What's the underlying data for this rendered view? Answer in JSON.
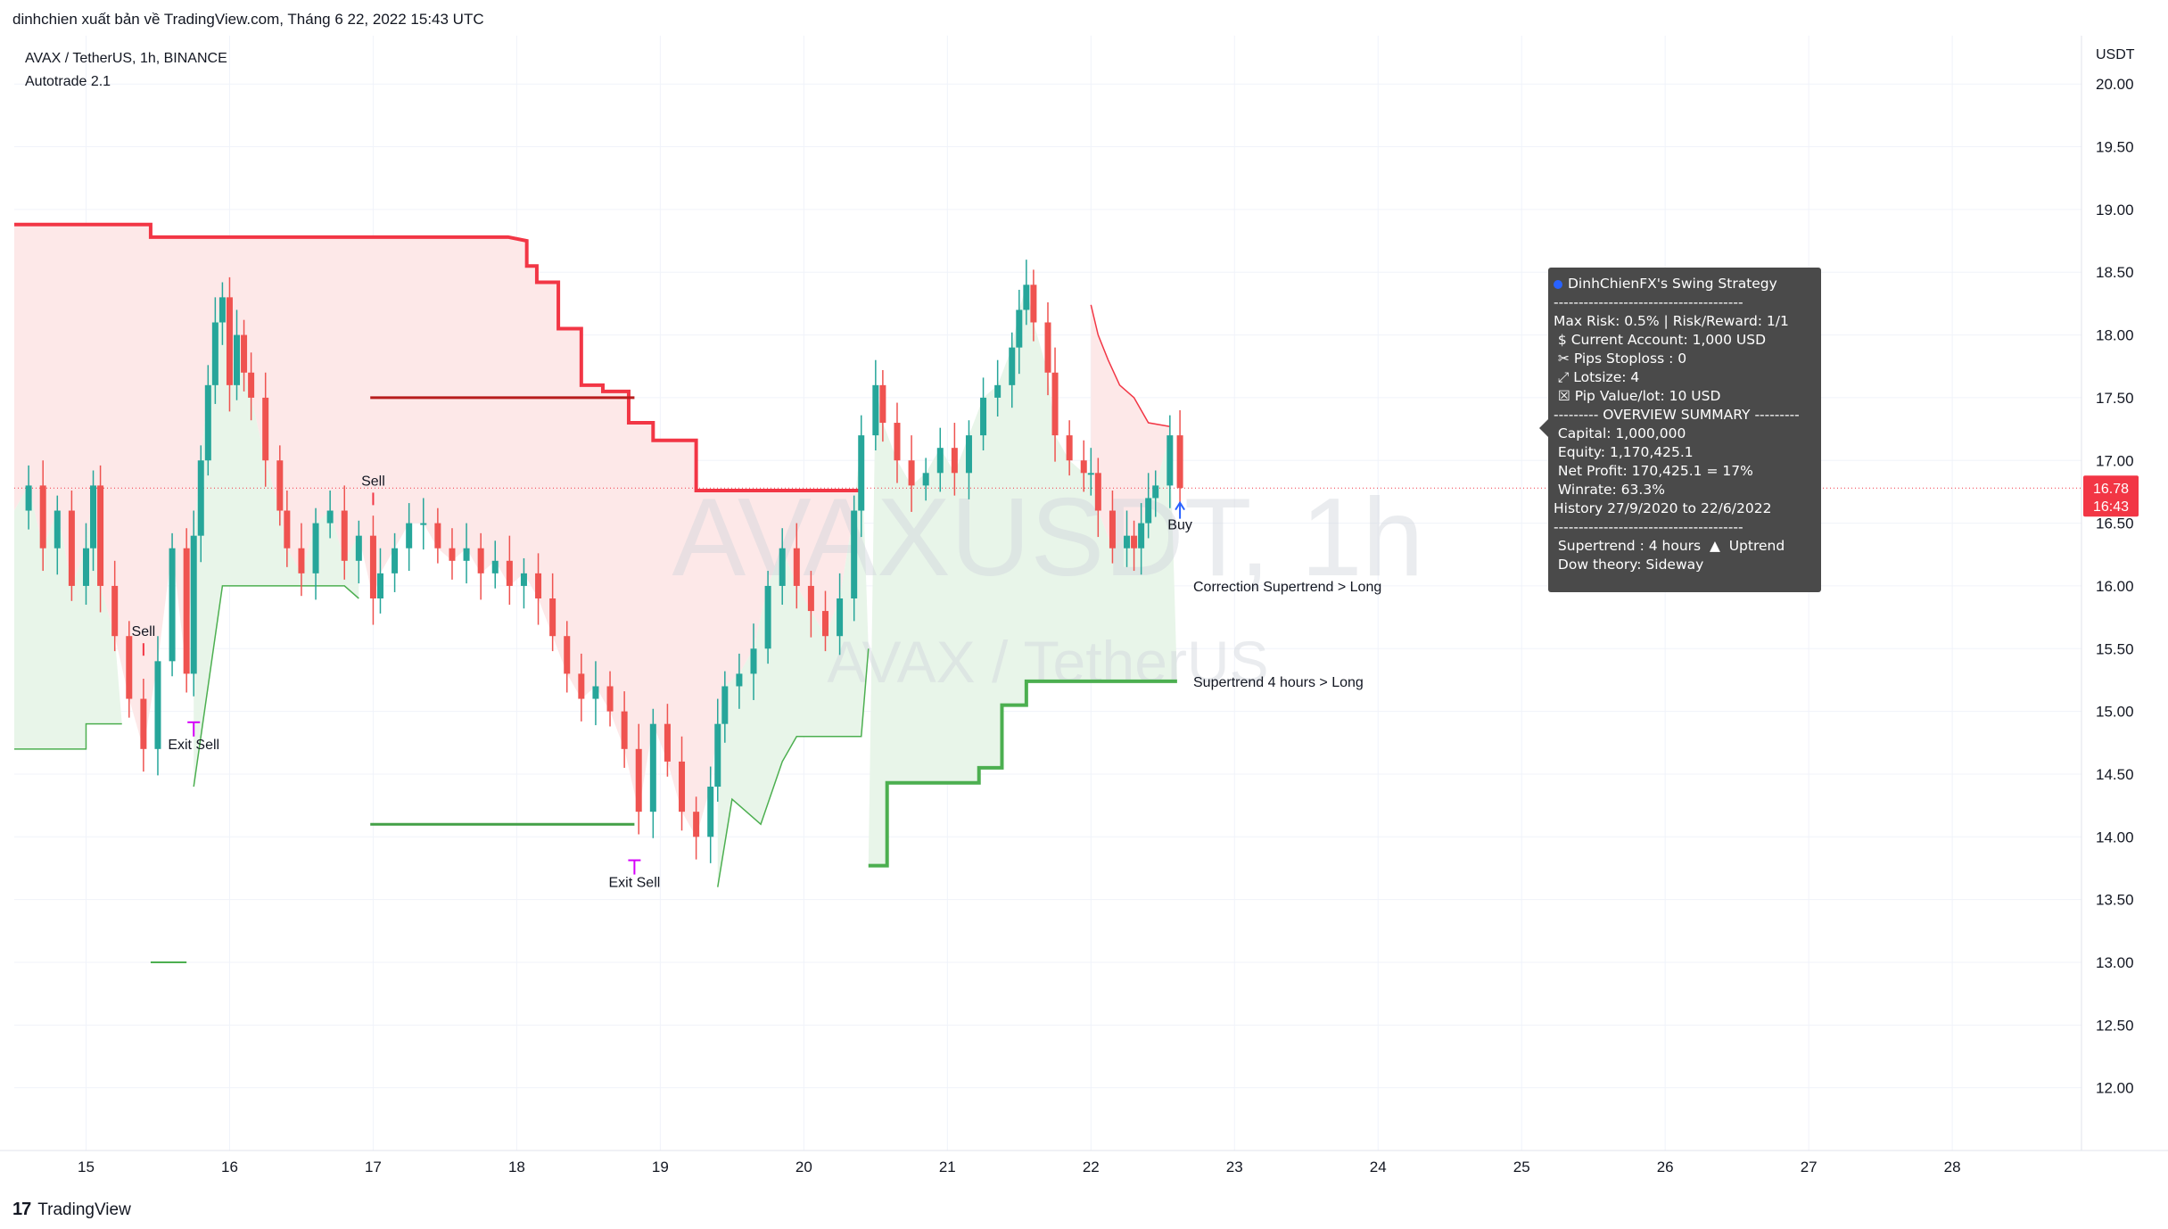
{
  "header": {
    "publisher_line": "dinhchien xuất bản về TradingView.com, Tháng 6 22, 2022 15:43 UTC"
  },
  "legend": {
    "symbol_line": "AVAX / TetherUS, 1h, BINANCE",
    "indicator_line": "Autotrade 2.1"
  },
  "watermark": {
    "main": "AVAXUSDT, 1h",
    "sub": "AVAX / TetherUS"
  },
  "brand": {
    "name": "TradingView"
  },
  "colors": {
    "up": "#26a69a",
    "down": "#ef5350",
    "supertrend_red": "#f23645",
    "supertrend_green": "#4caf50",
    "red_fill": "#fde8e8",
    "green_fill": "#e8f5e9",
    "magenta": "#d500f9",
    "panel_bg": "#4a4a4a",
    "price_tag": "#f23645"
  },
  "chart_data": {
    "type": "candlestick",
    "title": "AVAX / TetherUS, 1h, BINANCE",
    "y_axis": {
      "unit_label": "USDT",
      "ticks": [
        "20.00",
        "19.50",
        "19.00",
        "18.50",
        "18.00",
        "17.50",
        "17.00",
        "16.50",
        "16.00",
        "15.50",
        "15.00",
        "14.50",
        "14.00",
        "13.50",
        "13.00",
        "12.50",
        "12.00"
      ],
      "ylim": [
        11.5,
        20.3
      ]
    },
    "x_axis": {
      "ticks": [
        "15",
        "16",
        "17",
        "18",
        "19",
        "20",
        "21",
        "22",
        "23",
        "24",
        "25",
        "26",
        "27",
        "28"
      ],
      "tick_values": [
        15,
        16,
        17,
        18,
        19,
        20,
        21,
        22,
        23,
        24,
        25,
        26,
        27,
        28
      ],
      "xlim": [
        14.5,
        28.9
      ]
    },
    "last_price": {
      "price": "16.78",
      "countdown": "16:43",
      "value": 16.78
    },
    "candles_close_path": [
      [
        14.5,
        16.6
      ],
      [
        14.6,
        16.8
      ],
      [
        14.7,
        16.3
      ],
      [
        14.8,
        16.6
      ],
      [
        14.9,
        16.0
      ],
      [
        15.0,
        16.3
      ],
      [
        15.05,
        16.8
      ],
      [
        15.1,
        16.0
      ],
      [
        15.2,
        15.6
      ],
      [
        15.3,
        15.1
      ],
      [
        15.4,
        14.7
      ],
      [
        15.5,
        15.4
      ],
      [
        15.6,
        16.3
      ],
      [
        15.7,
        15.3
      ],
      [
        15.75,
        16.4
      ],
      [
        15.8,
        17.0
      ],
      [
        15.85,
        17.6
      ],
      [
        15.9,
        18.1
      ],
      [
        15.95,
        18.3
      ],
      [
        16.0,
        17.6
      ],
      [
        16.05,
        18.0
      ],
      [
        16.1,
        17.7
      ],
      [
        16.15,
        17.5
      ],
      [
        16.25,
        17.0
      ],
      [
        16.35,
        16.6
      ],
      [
        16.4,
        16.3
      ],
      [
        16.5,
        16.1
      ],
      [
        16.6,
        16.5
      ],
      [
        16.7,
        16.6
      ],
      [
        16.8,
        16.2
      ],
      [
        16.9,
        16.4
      ],
      [
        17.0,
        15.9
      ],
      [
        17.05,
        16.1
      ],
      [
        17.15,
        16.3
      ],
      [
        17.25,
        16.5
      ],
      [
        17.35,
        16.5
      ],
      [
        17.45,
        16.3
      ],
      [
        17.55,
        16.2
      ],
      [
        17.65,
        16.3
      ],
      [
        17.75,
        16.1
      ],
      [
        17.85,
        16.2
      ],
      [
        17.95,
        16.0
      ],
      [
        18.05,
        16.1
      ],
      [
        18.15,
        15.9
      ],
      [
        18.25,
        15.6
      ],
      [
        18.35,
        15.3
      ],
      [
        18.45,
        15.1
      ],
      [
        18.55,
        15.2
      ],
      [
        18.65,
        15.0
      ],
      [
        18.75,
        14.7
      ],
      [
        18.85,
        14.2
      ],
      [
        18.95,
        14.9
      ],
      [
        19.05,
        14.6
      ],
      [
        19.15,
        14.2
      ],
      [
        19.25,
        14.0
      ],
      [
        19.35,
        14.4
      ],
      [
        19.4,
        14.9
      ],
      [
        19.45,
        15.2
      ],
      [
        19.55,
        15.3
      ],
      [
        19.65,
        15.5
      ],
      [
        19.75,
        16.0
      ],
      [
        19.85,
        16.3
      ],
      [
        19.95,
        16.0
      ],
      [
        20.05,
        15.8
      ],
      [
        20.15,
        15.6
      ],
      [
        20.25,
        15.9
      ],
      [
        20.35,
        16.6
      ],
      [
        20.4,
        17.2
      ],
      [
        20.5,
        17.6
      ],
      [
        20.55,
        17.3
      ],
      [
        20.65,
        17.0
      ],
      [
        20.75,
        16.8
      ],
      [
        20.85,
        16.9
      ],
      [
        20.95,
        17.1
      ],
      [
        21.05,
        16.9
      ],
      [
        21.15,
        17.2
      ],
      [
        21.25,
        17.5
      ],
      [
        21.35,
        17.6
      ],
      [
        21.45,
        17.9
      ],
      [
        21.5,
        18.2
      ],
      [
        21.55,
        18.4
      ],
      [
        21.6,
        18.1
      ],
      [
        21.7,
        17.7
      ],
      [
        21.75,
        17.2
      ],
      [
        21.85,
        17.0
      ],
      [
        21.95,
        16.9
      ],
      [
        22.0,
        16.9
      ],
      [
        22.05,
        16.6
      ],
      [
        22.15,
        16.3
      ],
      [
        22.25,
        16.4
      ],
      [
        22.3,
        16.3
      ],
      [
        22.35,
        16.5
      ],
      [
        22.4,
        16.7
      ],
      [
        22.45,
        16.8
      ],
      [
        22.55,
        17.2
      ],
      [
        22.62,
        16.78
      ]
    ],
    "supertrend_1h": {
      "label": "Correction Supertrend  > Long",
      "red_segments": [
        [
          [
            14.5,
            18.88
          ],
          [
            14.9,
            18.88
          ],
          [
            15.0,
            18.88
          ],
          [
            15.45,
            18.88
          ],
          [
            15.45,
            18.78
          ],
          [
            16.0,
            18.78
          ],
          [
            17.0,
            18.78
          ],
          [
            17.94,
            18.78
          ],
          [
            18.07,
            18.75
          ],
          [
            18.07,
            18.55
          ],
          [
            18.14,
            18.55
          ],
          [
            18.14,
            18.42
          ],
          [
            18.29,
            18.42
          ],
          [
            18.29,
            18.05
          ],
          [
            18.45,
            18.05
          ],
          [
            18.45,
            17.6
          ],
          [
            18.6,
            17.6
          ],
          [
            18.6,
            17.55
          ],
          [
            18.78,
            17.55
          ],
          [
            18.78,
            17.3
          ],
          [
            18.95,
            17.3
          ],
          [
            18.95,
            17.16
          ],
          [
            19.25,
            17.16
          ],
          [
            19.25,
            16.76
          ],
          [
            20.4,
            16.76
          ]
        ],
        [
          [
            22.0,
            18.24
          ],
          [
            22.05,
            18.0
          ],
          [
            22.12,
            17.8
          ],
          [
            22.2,
            17.6
          ],
          [
            22.3,
            17.5
          ],
          [
            22.4,
            17.3
          ],
          [
            22.55,
            17.27
          ]
        ]
      ],
      "green_segments": [
        [
          [
            14.5,
            14.7
          ],
          [
            15.0,
            14.7
          ],
          [
            15.0,
            14.9
          ],
          [
            15.25,
            14.9
          ]
        ],
        [
          [
            15.75,
            14.4
          ],
          [
            15.85,
            15.2
          ],
          [
            15.95,
            16.0
          ],
          [
            16.3,
            16.0
          ],
          [
            16.8,
            16.0
          ],
          [
            16.9,
            15.9
          ]
        ],
        [
          [
            19.4,
            13.6
          ],
          [
            19.5,
            14.3
          ],
          [
            19.7,
            14.1
          ],
          [
            19.85,
            14.6
          ],
          [
            19.95,
            14.8
          ],
          [
            20.4,
            14.8
          ],
          [
            20.45,
            15.5
          ]
        ]
      ],
      "small_green": [
        [
          [
            15.45,
            13.0
          ],
          [
            15.7,
            13.0
          ]
        ]
      ]
    },
    "supertrend_4h": {
      "label": "Supertrend 4 hours > Long",
      "red_segments": [
        [
          [
            20.35,
            16.76
          ],
          [
            20.4,
            16.76
          ]
        ]
      ],
      "green_segments": [
        [
          [
            20.45,
            13.77
          ],
          [
            20.58,
            13.77
          ],
          [
            20.58,
            14.43
          ],
          [
            21.22,
            14.43
          ],
          [
            21.22,
            14.55
          ],
          [
            21.38,
            14.55
          ],
          [
            21.38,
            15.05
          ],
          [
            21.55,
            15.05
          ],
          [
            21.55,
            15.24
          ],
          [
            22.6,
            15.24
          ]
        ]
      ]
    },
    "level_lines": [
      {
        "color": "#b71c1c",
        "from": [
          16.98,
          17.5
        ],
        "to": [
          18.82,
          17.5
        ]
      },
      {
        "color": "#43a047",
        "from": [
          16.98,
          14.1
        ],
        "to": [
          18.82,
          14.1
        ]
      }
    ],
    "signals": [
      {
        "text": "Sell",
        "x": 15.4,
        "y": 15.6,
        "kind": "sell"
      },
      {
        "text": "Exit Sell",
        "x": 15.75,
        "y": 14.7,
        "kind": "exit"
      },
      {
        "text": "Sell",
        "x": 17.0,
        "y": 16.8,
        "kind": "sell"
      },
      {
        "text": "Exit Sell",
        "x": 18.82,
        "y": 13.6,
        "kind": "exit"
      },
      {
        "text": "Buy",
        "x": 22.62,
        "y": 16.45,
        "kind": "buy"
      }
    ]
  },
  "info_panel": {
    "title": "DinhChienFX's Swing Strategy",
    "sep1": "--------------------------------------",
    "line1": "Max Risk: 0.5% | Risk/Reward: 1/1",
    "line2": " $ Current Account: 1,000 USD",
    "line3": " ✂ Pips Stoploss : 0",
    "line4": " ⤢ Lotsize: 4",
    "line5": " ☒ Pip Value/lot: 10 USD",
    "line6": "--------- OVERVIEW SUMMARY ---------",
    "line7": " Capital: 1,000,000",
    "line8": " Equity: 1,170,425.1",
    "line9": " Net Profit: 170,425.1 = 17%",
    "line10": " Winrate: 63.3%",
    "line11": "History 27/9/2020 to 22/6/2022",
    "sep2": "--------------------------------------",
    "line12": " Supertrend : 4 hours  ▲  Uptrend",
    "line13": " Dow theory: Sideway"
  }
}
